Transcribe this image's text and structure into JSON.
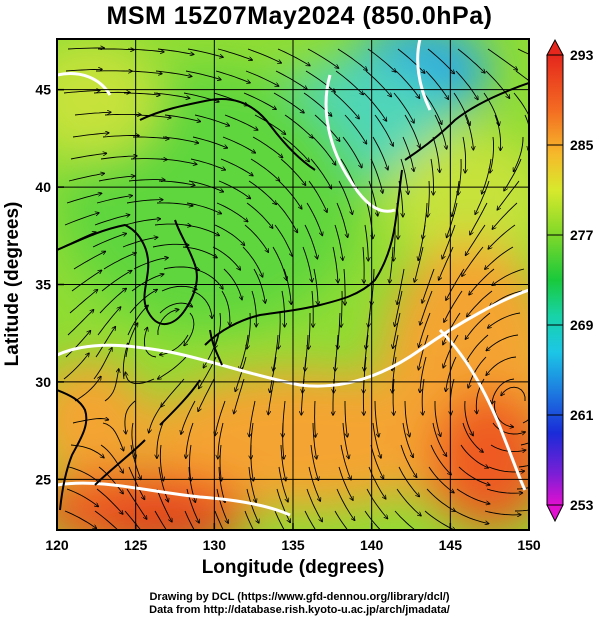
{
  "title": "MSM 15Z07May2024 (850.0hPa)",
  "axes": {
    "x_title": "Longitude (degrees)",
    "y_title": "Latitude  (degrees)",
    "x_ticks": [
      "120",
      "125",
      "130",
      "135",
      "140",
      "145",
      "150"
    ],
    "y_ticks": [
      "25",
      "30",
      "35",
      "40",
      "45"
    ],
    "x_range": [
      120,
      150
    ],
    "y_range": [
      22.4,
      47.6
    ],
    "grid": true
  },
  "colorbar": {
    "labels": [
      "293",
      "285",
      "277",
      "269",
      "261",
      "253"
    ],
    "range": [
      253,
      293
    ],
    "colors": [
      "#e10fd0",
      "#7a1fd6",
      "#1a2bd8",
      "#1d7ae0",
      "#1cc6e6",
      "#18d3a8",
      "#19c93c",
      "#7fd82a",
      "#d8e92c",
      "#f6b92b",
      "#f36a22",
      "#e5271d"
    ]
  },
  "field": {
    "variable": "temperature",
    "units": "K",
    "palette": {
      "cold": "#2aa9e4",
      "cool": "#4fd6b8",
      "mid": "#5fd63c",
      "warm": "#c6e23a",
      "hot": "#f4a431",
      "hotter": "#ee5a24",
      "hottest": "#e0311e"
    }
  },
  "credits": {
    "line1": "Drawing by DCL (https://www.gfd-dennou.org/library/dcl/)",
    "line2": "Data from http://database.rish.kyoto-u.ac.jp/arch/jmadata/"
  }
}
